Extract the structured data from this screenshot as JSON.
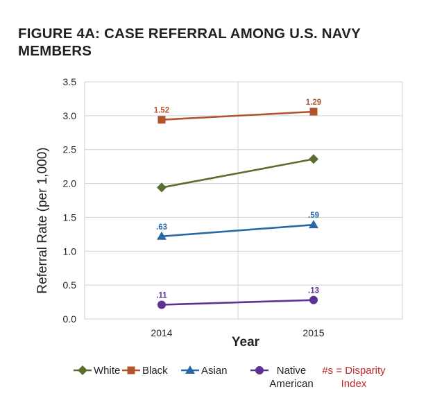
{
  "chart_data": {
    "type": "line",
    "title": "FIGURE 4A: CASE REFERRAL AMONG U.S. NAVY MEMBERS",
    "xlabel": "Year",
    "ylabel": "Referral Rate (per 1,000)",
    "categories": [
      "2014",
      "2015"
    ],
    "ylim": [
      0,
      3.5
    ],
    "yticks": [
      "0.0",
      "0.5",
      "1.0",
      "1.5",
      "2.0",
      "2.5",
      "3.0",
      "3.5"
    ],
    "grid": "horizontal",
    "legend_position": "bottom",
    "series": [
      {
        "name": "White",
        "values": [
          1.94,
          2.36
        ],
        "labels": [
          "",
          ""
        ],
        "color": "#5b6e2f",
        "marker": "diamond"
      },
      {
        "name": "Black",
        "values": [
          2.94,
          3.06
        ],
        "labels": [
          "1.52",
          "1.29"
        ],
        "color": "#b3532c",
        "marker": "square"
      },
      {
        "name": "Asian",
        "values": [
          1.22,
          1.39
        ],
        "labels": [
          ".63",
          ".59"
        ],
        "color": "#2868a4",
        "marker": "triangle"
      },
      {
        "name": "Native American",
        "values": [
          0.21,
          0.28
        ],
        "labels": [
          ".11",
          ".13"
        ],
        "color": "#5e3292",
        "marker": "circle"
      }
    ],
    "legend_note": "#s = Disparity Index",
    "legend_note_color": "#c1272d"
  }
}
